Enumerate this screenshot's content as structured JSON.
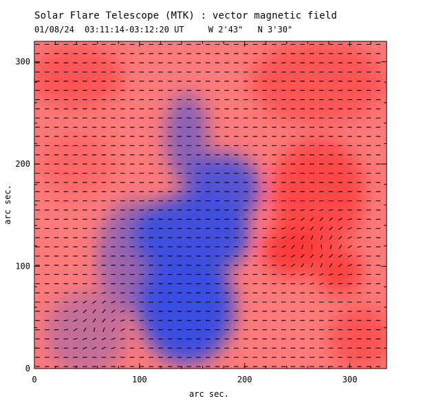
{
  "header": {
    "title": "Solar Flare Telescope (MTK) : vector magnetic field",
    "date": "01/08/24",
    "time_range": "03:11:14-03:12:20 UT",
    "lon": "W 2'43\"",
    "lat": "N 3'30\""
  },
  "chart_data": {
    "type": "heatmap",
    "title": "Solar Flare Telescope (MTK) : vector magnetic field",
    "xlabel": "arc sec.",
    "ylabel": "arc sec.",
    "xlim": [
      0,
      335
    ],
    "ylim": [
      0,
      320
    ],
    "x_ticks": [
      0,
      100,
      200,
      300
    ],
    "y_ticks": [
      0,
      100,
      200,
      300
    ],
    "colormap": {
      "negative": "#3a4ee0",
      "zero": "#ffffff",
      "positive": "#ff3535"
    },
    "regions": [
      {
        "name": "negative-plage-main",
        "polarity": "negative",
        "strength": 1.0,
        "x": 145,
        "y": 60,
        "rx": 45,
        "ry": 55
      },
      {
        "name": "negative-plage-mid",
        "polarity": "negative",
        "strength": 0.95,
        "x": 150,
        "y": 130,
        "rx": 55,
        "ry": 40
      },
      {
        "name": "negative-plage-upper",
        "polarity": "negative",
        "strength": 0.85,
        "x": 180,
        "y": 175,
        "rx": 35,
        "ry": 35
      },
      {
        "name": "negative-tongue",
        "polarity": "negative",
        "strength": 0.6,
        "x": 145,
        "y": 225,
        "rx": 20,
        "ry": 45
      },
      {
        "name": "negative-west",
        "polarity": "negative",
        "strength": 0.5,
        "x": 95,
        "y": 110,
        "rx": 35,
        "ry": 55
      },
      {
        "name": "weak-negative-sw",
        "polarity": "negative",
        "strength": 0.3,
        "x": 50,
        "y": 35,
        "rx": 40,
        "ry": 40
      },
      {
        "name": "positive-spot-1",
        "polarity": "positive",
        "strength": 0.9,
        "x": 245,
        "y": 115,
        "rx": 28,
        "ry": 25
      },
      {
        "name": "positive-spot-2",
        "polarity": "positive",
        "strength": 0.85,
        "x": 290,
        "y": 95,
        "rx": 22,
        "ry": 22
      },
      {
        "name": "positive-east",
        "polarity": "positive",
        "strength": 0.7,
        "x": 270,
        "y": 170,
        "rx": 45,
        "ry": 55
      },
      {
        "name": "positive-north",
        "polarity": "positive",
        "strength": 0.55,
        "x": 270,
        "y": 280,
        "rx": 65,
        "ry": 40
      },
      {
        "name": "positive-nw",
        "polarity": "positive",
        "strength": 0.55,
        "x": 40,
        "y": 285,
        "rx": 45,
        "ry": 30
      },
      {
        "name": "positive-left",
        "polarity": "positive",
        "strength": 0.3,
        "x": 40,
        "y": 200,
        "rx": 35,
        "ry": 30
      },
      {
        "name": "positive-se",
        "polarity": "positive",
        "strength": 0.6,
        "x": 310,
        "y": 30,
        "rx": 30,
        "ry": 30
      }
    ],
    "vector_grid": {
      "dx": 9,
      "dy": 9,
      "default_angle_deg": 0,
      "length": 6.5
    },
    "vector_swirls": [
      {
        "x": 270,
        "y": 120,
        "r": 45,
        "angle_deg": 90
      },
      {
        "x": 60,
        "y": 45,
        "r": 35,
        "angle_deg": 75
      }
    ]
  }
}
